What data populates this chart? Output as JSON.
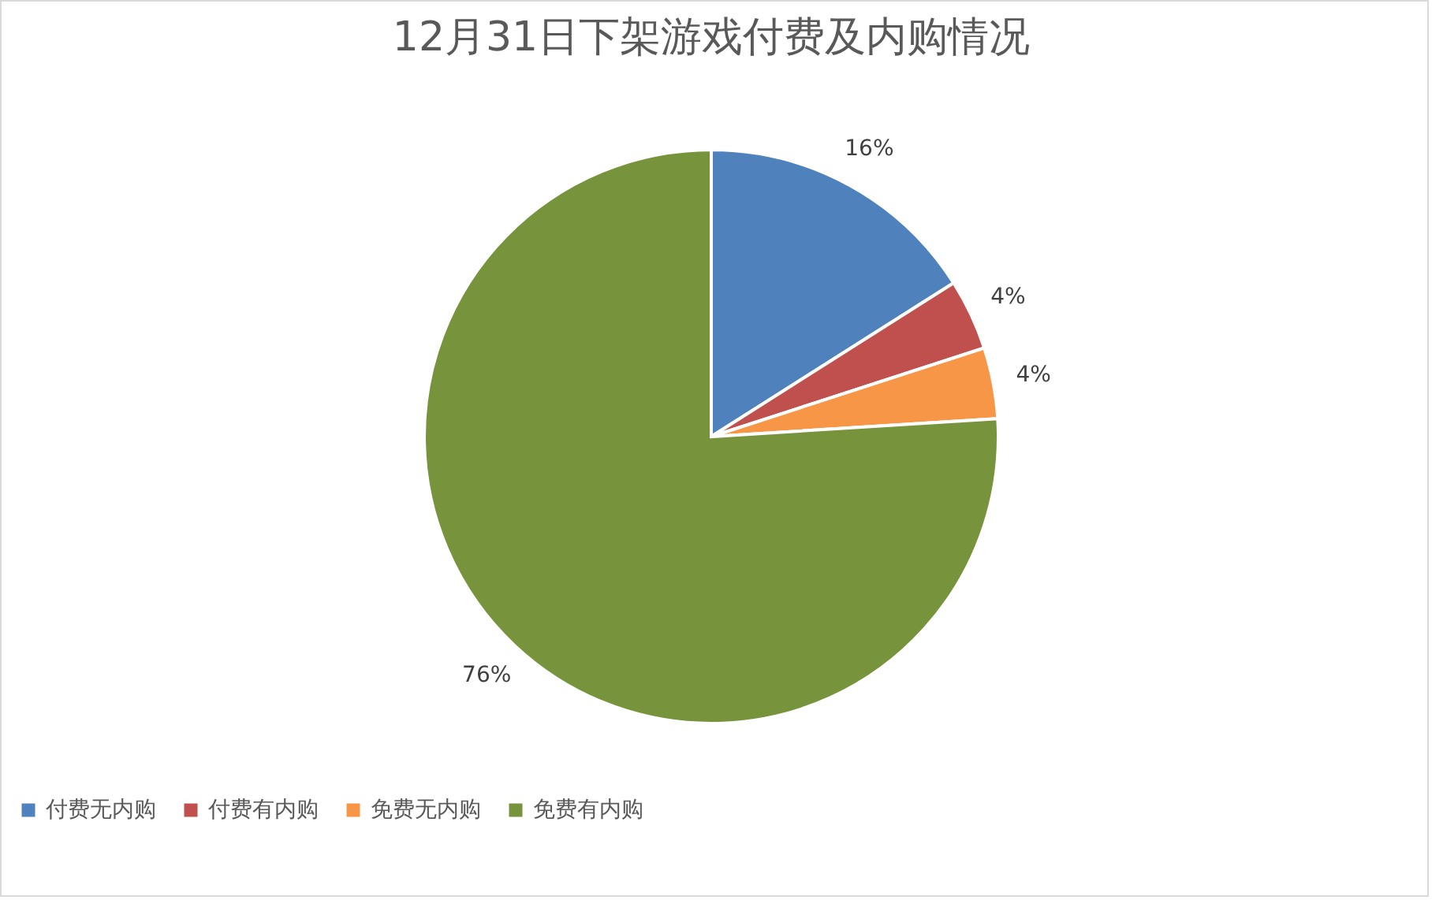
{
  "chart_data": {
    "type": "pie",
    "title": "12月31日下架游戏付费及内购情况",
    "categories": [
      "付费无内购",
      "付费有内购",
      "免费无内购",
      "免费有内购"
    ],
    "values": [
      16,
      4,
      4,
      76
    ],
    "colors": [
      "#4f81bd",
      "#c0504d",
      "#f79646",
      "#77933c"
    ],
    "value_labels": [
      "16%",
      "4%",
      "4%",
      "76%"
    ],
    "legend": "bottom"
  }
}
